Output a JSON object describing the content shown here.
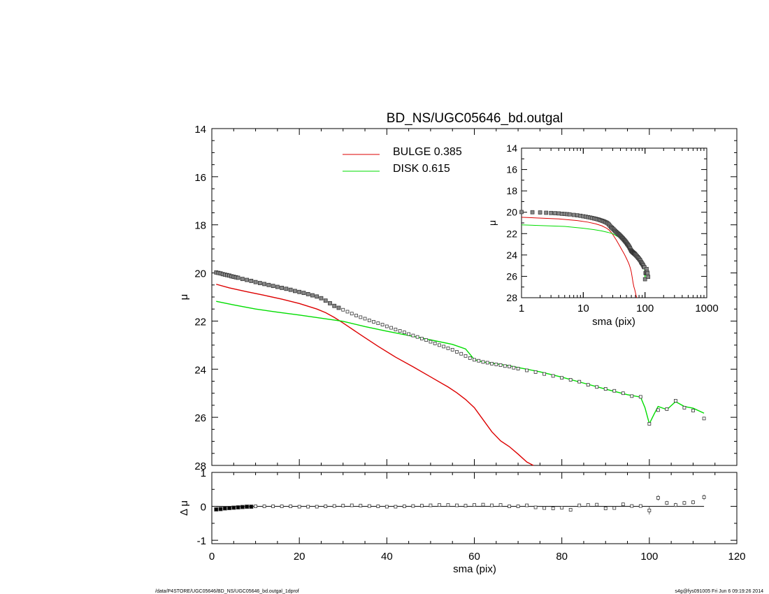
{
  "chart_data": [
    {
      "id": "main-profile",
      "type": "scatter",
      "title": "BD_NS/UGC05646_bd.outgal",
      "xlabel": "",
      "ylabel": "μ",
      "xlim": [
        0,
        120
      ],
      "ylim": [
        28,
        14
      ],
      "y_inverted": true,
      "xticks": [
        0,
        20,
        40,
        60,
        80,
        100,
        120
      ],
      "yticks": [
        14,
        16,
        18,
        20,
        22,
        24,
        26,
        28
      ],
      "legend": {
        "placement": "top-center",
        "entries": [
          {
            "label": "BULGE  0.385",
            "color": "#dd0000"
          },
          {
            "label": "DISK  0.615",
            "color": "#00dd00"
          }
        ]
      },
      "series": [
        {
          "kind": "data",
          "marker": "square",
          "color": "#000000",
          "x": [
            1,
            1.5,
            2,
            2.5,
            3,
            3.5,
            4,
            4.5,
            5,
            5.5,
            6,
            7,
            8,
            9,
            10,
            11,
            12,
            13,
            14,
            15,
            16,
            17,
            18,
            19,
            20,
            21,
            22,
            23,
            24,
            25,
            26,
            27,
            28,
            29,
            30,
            31,
            32,
            33,
            34,
            35,
            36,
            37,
            38,
            39,
            40,
            41,
            42,
            43,
            44,
            45,
            46,
            47,
            48,
            49,
            50,
            51,
            52,
            53,
            54,
            55,
            56,
            57,
            58,
            59,
            60,
            61,
            62,
            63,
            64,
            65,
            66,
            67,
            68,
            69,
            70,
            72,
            74,
            76,
            78,
            80,
            82,
            84,
            86,
            88,
            90,
            92,
            94,
            96,
            98,
            100,
            102,
            104,
            106,
            108,
            110,
            112.5
          ],
          "y": [
            19.98,
            20.0,
            20.02,
            20.05,
            20.07,
            20.09,
            20.11,
            20.14,
            20.16,
            20.18,
            20.2,
            20.25,
            20.29,
            20.33,
            20.38,
            20.42,
            20.46,
            20.5,
            20.54,
            20.58,
            20.62,
            20.66,
            20.7,
            20.75,
            20.79,
            20.83,
            20.88,
            20.93,
            20.98,
            21.05,
            21.15,
            21.26,
            21.37,
            21.45,
            21.53,
            21.61,
            21.69,
            21.77,
            21.84,
            21.9,
            21.97,
            22.03,
            22.09,
            22.15,
            22.22,
            22.28,
            22.35,
            22.41,
            22.47,
            22.54,
            22.6,
            22.66,
            22.73,
            22.79,
            22.86,
            22.93,
            23.0,
            23.06,
            23.13,
            23.19,
            23.28,
            23.36,
            23.45,
            23.54,
            23.61,
            23.65,
            23.7,
            23.73,
            23.77,
            23.8,
            23.83,
            23.87,
            23.89,
            23.94,
            23.98,
            24.05,
            24.12,
            24.2,
            24.28,
            24.36,
            24.44,
            24.52,
            24.65,
            24.74,
            24.82,
            24.9,
            25.0,
            25.12,
            25.15,
            26.27,
            25.7,
            25.66,
            25.31,
            25.6,
            25.72,
            26.05
          ]
        },
        {
          "kind": "model",
          "name": "BULGE",
          "color": "#dd0000",
          "x": [
            1,
            4,
            8,
            12,
            16,
            20,
            24,
            26,
            28,
            30,
            34,
            38,
            42,
            46,
            50,
            54,
            56,
            58,
            60,
            62,
            64,
            66,
            68,
            70,
            72,
            73.5
          ],
          "y": [
            20.47,
            20.62,
            20.78,
            20.93,
            21.09,
            21.27,
            21.5,
            21.65,
            21.85,
            22.08,
            22.57,
            23.05,
            23.5,
            23.9,
            24.32,
            24.74,
            24.98,
            25.26,
            25.6,
            26.1,
            26.6,
            26.98,
            27.22,
            27.53,
            27.86,
            28.0
          ]
        },
        {
          "kind": "model",
          "name": "DISK",
          "color": "#00dd00",
          "x": [
            1,
            5,
            10,
            15,
            20,
            25,
            30,
            35,
            40,
            45,
            50,
            55,
            58,
            60,
            62,
            65,
            68,
            70,
            72,
            75,
            80,
            85,
            90,
            95,
            98,
            99,
            100,
            101,
            102,
            104,
            106,
            108,
            110,
            112.5
          ],
          "y": [
            21.18,
            21.33,
            21.5,
            21.63,
            21.75,
            21.88,
            22.01,
            22.23,
            22.42,
            22.6,
            22.78,
            22.97,
            23.16,
            23.6,
            23.7,
            23.78,
            23.86,
            23.93,
            24.0,
            24.11,
            24.33,
            24.58,
            24.83,
            25.06,
            25.16,
            25.6,
            26.27,
            25.9,
            25.55,
            25.68,
            25.35,
            25.55,
            25.62,
            25.83
          ]
        }
      ]
    },
    {
      "id": "residuals",
      "type": "scatter",
      "xlabel": "sma (pix)",
      "ylabel": "Δ μ",
      "xlim": [
        0,
        120
      ],
      "ylim": [
        -1.1,
        1.0
      ],
      "xticks": [
        0,
        20,
        40,
        60,
        80,
        100,
        120
      ],
      "yticks": [
        -1,
        0,
        1
      ],
      "zero_line": true,
      "series": [
        {
          "kind": "residual",
          "marker": "square",
          "color": "#000000",
          "x": [
            1,
            2,
            3,
            4,
            5,
            6,
            7,
            8,
            9,
            10,
            12,
            14,
            16,
            18,
            20,
            22,
            24,
            26,
            28,
            30,
            32,
            34,
            36,
            38,
            40,
            42,
            44,
            46,
            48,
            50,
            52,
            54,
            56,
            58,
            60,
            62,
            64,
            66,
            68,
            70,
            72,
            74,
            76,
            78,
            80,
            82,
            84,
            86,
            88,
            90,
            92,
            94,
            96,
            98,
            100,
            102,
            104,
            106,
            108,
            110,
            112.5
          ],
          "y": [
            -0.09,
            -0.08,
            -0.06,
            -0.05,
            -0.04,
            -0.03,
            -0.02,
            -0.01,
            -0.01,
            0.0,
            0.0,
            0.0,
            0.0,
            0.0,
            -0.01,
            -0.01,
            -0.01,
            0.0,
            0.01,
            0.02,
            0.03,
            0.02,
            0.01,
            0.0,
            -0.01,
            -0.01,
            0.0,
            0.01,
            0.02,
            0.03,
            0.04,
            0.04,
            0.03,
            0.02,
            0.04,
            0.05,
            0.03,
            0.04,
            0.0,
            0.0,
            0.03,
            -0.03,
            -0.05,
            -0.06,
            -0.04,
            -0.1,
            0.03,
            0.04,
            0.05,
            -0.06,
            -0.05,
            0.06,
            0.01,
            0.01,
            -0.12,
            0.25,
            0.1,
            0.04,
            0.1,
            0.12,
            0.27
          ],
          "err": [
            0.02,
            0.02,
            0.02,
            0.02,
            0.02,
            0.02,
            0.02,
            0.02,
            0.02,
            0.02,
            0.02,
            0.02,
            0.02,
            0.02,
            0.02,
            0.02,
            0.02,
            0.02,
            0.02,
            0.02,
            0.02,
            0.02,
            0.02,
            0.02,
            0.02,
            0.02,
            0.02,
            0.02,
            0.02,
            0.02,
            0.02,
            0.02,
            0.02,
            0.02,
            0.02,
            0.02,
            0.02,
            0.02,
            0.02,
            0.02,
            0.02,
            0.02,
            0.02,
            0.02,
            0.02,
            0.02,
            0.02,
            0.02,
            0.02,
            0.02,
            0.02,
            0.02,
            0.02,
            0.02,
            0.12,
            0.08,
            0.06,
            0.06,
            0.06,
            0.06,
            0.08
          ]
        }
      ]
    },
    {
      "id": "inset-log",
      "type": "scatter",
      "xlabel": "sma (pix)",
      "ylabel": "μ",
      "xscale": "log",
      "xlim": [
        1,
        1000
      ],
      "ylim": [
        28,
        14
      ],
      "y_inverted": true,
      "xticks": [
        1,
        10,
        100,
        1000
      ],
      "yticks": [
        14,
        16,
        18,
        20,
        22,
        24,
        26,
        28
      ],
      "legend": null
    }
  ],
  "footer": {
    "left": "/data/P4STORE/UGC05646/BD_NS/UGC05646_bd.outgal_1dprof",
    "right": "s4g@fys091005  Fri Jun  6 09:19:26 2014"
  }
}
